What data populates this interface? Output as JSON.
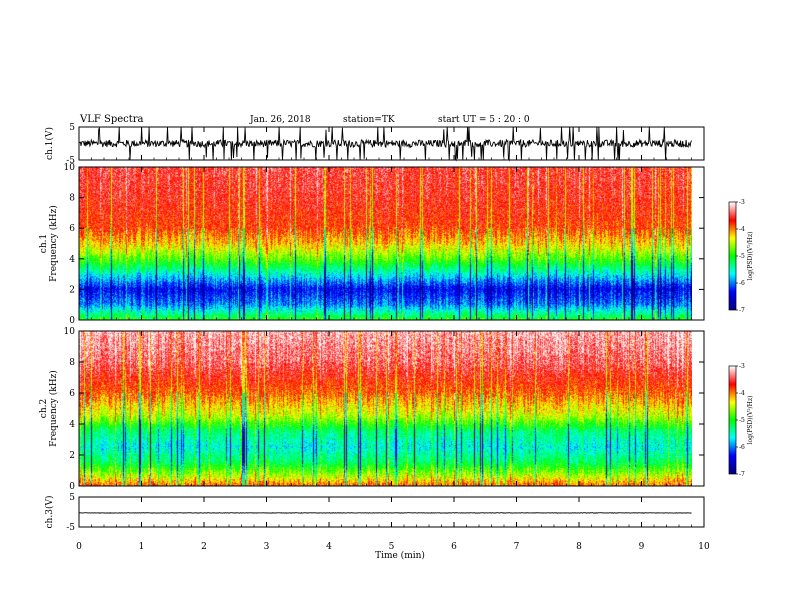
{
  "header": {
    "title": "VLF Spectra",
    "date": "Jan. 26, 2018",
    "station": "station=TK",
    "start": "start UT =  5 : 20 : 0"
  },
  "chart_data": [
    {
      "type": "line",
      "name": "ch1-waveform",
      "ylabel": "ch.1(V)",
      "xlim": [
        0,
        10
      ],
      "ylim": [
        -5,
        5
      ],
      "yticks": [
        "5",
        "-5"
      ],
      "data_end_x": 9.8,
      "baseline": 0,
      "amplitude": "noisy with frequent spikes reaching beyond ±5"
    },
    {
      "type": "heatmap",
      "name": "ch1-spectrogram",
      "ylabel": "ch.1\nFrequency (kHz)",
      "xlim": [
        0,
        10
      ],
      "ylim": [
        0,
        10
      ],
      "yticks": [
        "0",
        "2",
        "4",
        "6",
        "8",
        "10"
      ],
      "data_end_x": 9.8,
      "colorscale": [
        "#000080",
        "#0000ff",
        "#00ffff",
        "#00ff00",
        "#ffff00",
        "#ff0000",
        "#ffffff"
      ],
      "colorbar": {
        "label": "log(PSD)(V²/Hz)",
        "range": [
          -7,
          -3
        ],
        "ticks": [
          "-3",
          "-4",
          "-5",
          "-6",
          "-7"
        ]
      },
      "profile_log_psd": [
        {
          "freq_khz": 0.0,
          "value": -5.0
        },
        {
          "freq_khz": 1.0,
          "value": -6.0
        },
        {
          "freq_khz": 2.0,
          "value": -6.4
        },
        {
          "freq_khz": 3.0,
          "value": -5.6
        },
        {
          "freq_khz": 4.0,
          "value": -4.8
        },
        {
          "freq_khz": 5.0,
          "value": -4.2
        },
        {
          "freq_khz": 6.0,
          "value": -3.8
        },
        {
          "freq_khz": 8.0,
          "value": -3.6
        },
        {
          "freq_khz": 10.0,
          "value": -3.5
        }
      ]
    },
    {
      "type": "heatmap",
      "name": "ch2-spectrogram",
      "ylabel": "ch.2\nFrequency (kHz)",
      "xlim": [
        0,
        10
      ],
      "ylim": [
        0,
        10
      ],
      "yticks": [
        "0",
        "2",
        "4",
        "6",
        "8",
        "10"
      ],
      "data_end_x": 9.8,
      "colorscale": [
        "#000080",
        "#0000ff",
        "#00ffff",
        "#00ff00",
        "#ffff00",
        "#ff0000",
        "#ffffff"
      ],
      "colorbar": {
        "label": "log(PSD)(V²/Hz)",
        "range": [
          -7,
          -3
        ],
        "ticks": [
          "-3",
          "-4",
          "-5",
          "-6",
          "-7"
        ]
      },
      "profile_log_psd": [
        {
          "freq_khz": 0.0,
          "value": -3.9
        },
        {
          "freq_khz": 0.5,
          "value": -4.4
        },
        {
          "freq_khz": 1.5,
          "value": -5.2
        },
        {
          "freq_khz": 2.5,
          "value": -5.6
        },
        {
          "freq_khz": 3.5,
          "value": -5.3
        },
        {
          "freq_khz": 4.5,
          "value": -4.5
        },
        {
          "freq_khz": 6.0,
          "value": -3.9
        },
        {
          "freq_khz": 8.0,
          "value": -3.4
        },
        {
          "freq_khz": 10.0,
          "value": -3.2
        }
      ]
    },
    {
      "type": "line",
      "name": "ch3-waveform",
      "ylabel": "ch.3(V)",
      "xlim": [
        0,
        10
      ],
      "ylim": [
        -5,
        5
      ],
      "yticks": [
        "5",
        "-5"
      ],
      "data_end_x": 9.8,
      "baseline": -0.3,
      "amplitude": "flat"
    }
  ],
  "xaxis": {
    "label": "Time (min)",
    "ticks": [
      "0",
      "1",
      "2",
      "3",
      "4",
      "5",
      "6",
      "7",
      "8",
      "9",
      "10"
    ]
  },
  "colors": {
    "trace": "#000000",
    "frame": "#000000",
    "background": "#ffffff"
  }
}
